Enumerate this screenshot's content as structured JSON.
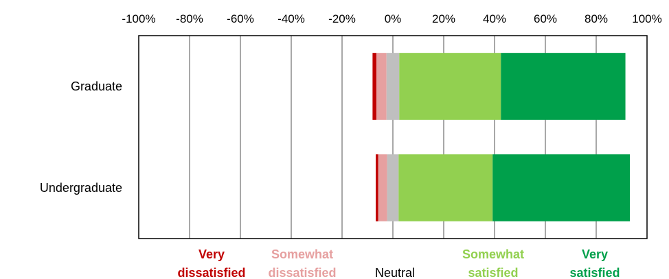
{
  "chart_data": {
    "type": "bar",
    "orientation": "horizontal",
    "stacked": "diverging",
    "categories": [
      "Graduate",
      "Undergraduate"
    ],
    "x_ticks": [
      "-100%",
      "-80%",
      "-60%",
      "-40%",
      "-20%",
      "0%",
      "20%",
      "40%",
      "60%",
      "80%",
      "100%"
    ],
    "xlim": [
      -100,
      100
    ],
    "x_axis_position": "top",
    "grid": true,
    "series": [
      {
        "name": "Very dissatisfied",
        "color": "#c00000",
        "values": [
          1.5,
          1.0
        ]
      },
      {
        "name": "Somewhat dissatisfied",
        "color": "#e6a0a0",
        "values": [
          4.0,
          3.5
        ]
      },
      {
        "name": "Neutral",
        "color": "#bfbfbf",
        "values": [
          5.0,
          4.5
        ]
      },
      {
        "name": "Somewhat satisfied",
        "color": "#92d050",
        "values": [
          40.0,
          37.0
        ]
      },
      {
        "name": "Very satisfied",
        "color": "#00a04b",
        "values": [
          49.0,
          54.0
        ]
      }
    ],
    "legend_placement": "bottom",
    "legend": [
      {
        "text": [
          "Very",
          "dissatisfied"
        ],
        "color": "#c00000"
      },
      {
        "text": [
          "Somewhat",
          "dissatisfied"
        ],
        "color": "#e6a0a0"
      },
      {
        "text": [
          "Neutral"
        ],
        "color": "#000000"
      },
      {
        "text": [
          "Somewhat",
          "satisfied"
        ],
        "color": "#92d050"
      },
      {
        "text": [
          "Very",
          "satisfied"
        ],
        "color": "#00a04b"
      }
    ]
  }
}
